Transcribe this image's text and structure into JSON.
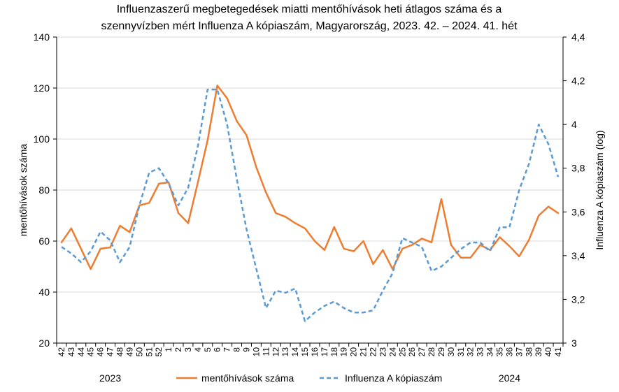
{
  "chart_data": {
    "type": "line",
    "title_lines": [
      "Influenzaszerű megbetegedések miatti mentőhívások heti átlagos száma és a",
      "szennyvízben mért Influenza A kópiaszám, Magyarország, 2023. 42. – 2024. 41. hét"
    ],
    "ylabel_left": "mentőhívások száma",
    "ylabel_right": "Influenza A kópiaszám (log)",
    "ylim_left": [
      20,
      140
    ],
    "yticks_left": [
      "20",
      "40",
      "60",
      "80",
      "100",
      "120",
      "140"
    ],
    "ylim_right": [
      3,
      4.4
    ],
    "yticks_right": [
      "3",
      "3,2",
      "3,4",
      "3,6",
      "3,8",
      "4",
      "4,2",
      "4,4"
    ],
    "categories": [
      "42",
      "43",
      "44",
      "45",
      "46",
      "47",
      "48",
      "49",
      "50",
      "51",
      "52",
      "1",
      "2",
      "3",
      "4",
      "5",
      "6",
      "7",
      "8",
      "9",
      "10",
      "11",
      "12",
      "13",
      "14",
      "15",
      "16",
      "17",
      "18",
      "19",
      "20",
      "21",
      "22",
      "23",
      "24",
      "25",
      "26",
      "27",
      "28",
      "29",
      "30",
      "31",
      "32",
      "33",
      "34",
      "35",
      "36",
      "37",
      "38",
      "39",
      "40",
      "41"
    ],
    "year_labels": [
      {
        "label": "2023",
        "at_category": "47"
      },
      {
        "label": "2024",
        "at_category": "36"
      }
    ],
    "series": [
      {
        "name": "mentőhívások száma",
        "axis": "left",
        "color": "#ED7D31",
        "style": "solid",
        "values": [
          59.5,
          65,
          57,
          49,
          57,
          57.5,
          66,
          63.5,
          74,
          75,
          82.5,
          83,
          71,
          67,
          83,
          99.5,
          121,
          116,
          107,
          101.5,
          89,
          79,
          71,
          69.5,
          67,
          65,
          60,
          56.5,
          65.5,
          57,
          56,
          60,
          51,
          56.5,
          49,
          57,
          58.5,
          61,
          59.5,
          76.5,
          58.5,
          53.5,
          53.5,
          58.5,
          56.5,
          61.5,
          58,
          54,
          60.5,
          70,
          73.5,
          71
        ]
      },
      {
        "name": "Influenza A kópiaszám",
        "axis": "right",
        "color": "#5B9BD5",
        "style": "dashed",
        "values": [
          3.44,
          3.41,
          3.37,
          3.42,
          3.51,
          3.47,
          3.37,
          3.44,
          3.63,
          3.78,
          3.8,
          3.73,
          3.63,
          3.71,
          3.9,
          4.16,
          4.16,
          4.0,
          3.75,
          3.52,
          3.34,
          3.16,
          3.24,
          3.23,
          3.25,
          3.1,
          3.14,
          3.17,
          3.19,
          3.16,
          3.14,
          3.14,
          3.15,
          3.24,
          3.32,
          3.48,
          3.46,
          3.44,
          3.33,
          3.35,
          3.39,
          3.43,
          3.46,
          3.46,
          3.42,
          3.53,
          3.53,
          3.7,
          3.82,
          4.0,
          3.91,
          3.76
        ]
      }
    ],
    "legend_position": "bottom-center"
  }
}
